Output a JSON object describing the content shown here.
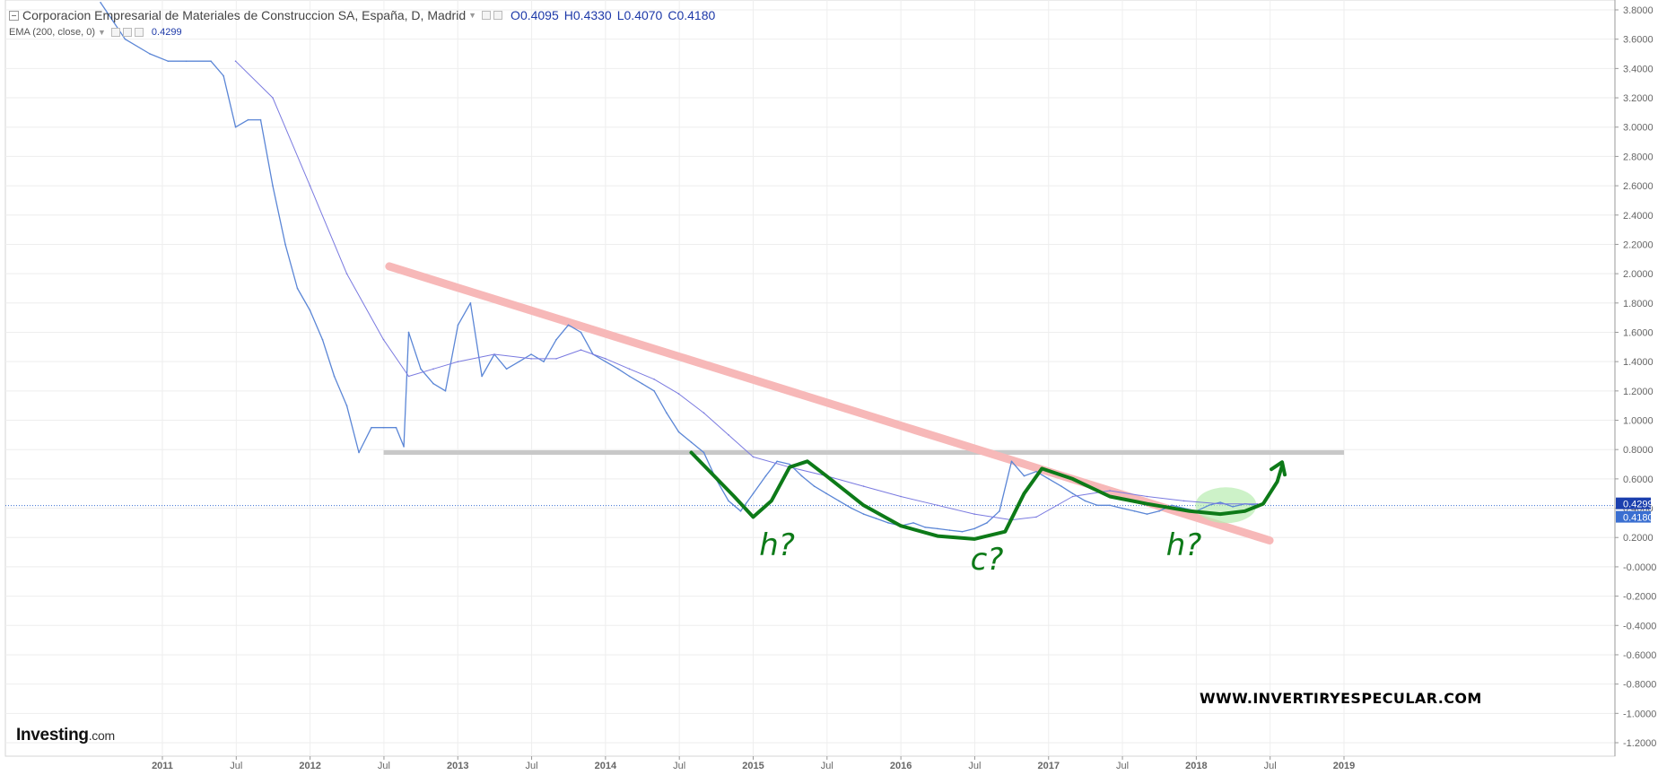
{
  "header": {
    "title": "Corporacion Empresarial de Materiales de Construccion SA, España, D, Madrid",
    "ohlc": [
      {
        "k": "O",
        "v": "0.4095"
      },
      {
        "k": "H",
        "v": "0.4330"
      },
      {
        "k": "L",
        "v": "0.4070"
      },
      {
        "k": "C",
        "v": "0.4180"
      }
    ],
    "indicator_label": "EMA (200, close, 0)",
    "indicator_value": "0.4299"
  },
  "branding": {
    "logo_text": "Investing",
    "logo_suffix": ".com",
    "watermark": "WWW.INVERTIRYESPECULAR.COM"
  },
  "colors": {
    "price": "#5b86d6",
    "ema": "#7a7ae0",
    "resistance": "#f7b8b8",
    "support": "#c8c8c8",
    "annotation": "#0d7a18",
    "highlight": "#b8ecb0",
    "axis": "#666666",
    "grid": "#eeeeee",
    "ema_badge": "#1b3fae",
    "last_badge": "#3a6fd1"
  },
  "chart_data": {
    "type": "line",
    "x_labels": [
      "2011",
      "Jul",
      "2012",
      "Jul",
      "2013",
      "Jul",
      "2014",
      "Jul",
      "2015",
      "Jul",
      "2016",
      "Jul",
      "2017",
      "Jul",
      "2018",
      "Jul",
      "2019"
    ],
    "y_ticks": [
      "3.8000",
      "3.6000",
      "3.4000",
      "3.2000",
      "3.0000",
      "2.8000",
      "2.6000",
      "2.4000",
      "2.2000",
      "2.0000",
      "1.8000",
      "1.6000",
      "1.4000",
      "1.2000",
      "1.0000",
      "0.8000",
      "0.6000",
      "0.4000",
      "0.2000",
      "-0.0000",
      "-0.2000",
      "-0.4000",
      "-0.6000",
      "-0.8000",
      "-1.0000",
      "-1.2000"
    ],
    "ylim": [
      -1.2,
      3.8
    ],
    "y_tick_values": [
      3.8,
      3.6,
      3.4,
      3.2,
      3.0,
      2.8,
      2.6,
      2.4,
      2.2,
      2.0,
      1.8,
      1.6,
      1.4,
      1.2,
      1.0,
      0.8,
      0.6,
      0.4,
      0.2,
      0.0,
      -0.2,
      -0.4,
      -0.6,
      -0.8,
      -1.0,
      -1.2
    ],
    "series": [
      {
        "name": "",
        "role": "price",
        "x": [
          "2010-08-01",
          "2010-10-01",
          "2010-12-01",
          "2011-01-15",
          "2011-03-01",
          "2011-05-01",
          "2011-06-01",
          "2011-07-01",
          "2011-08-01",
          "2011-09-01",
          "2011-10-01",
          "2011-11-01",
          "2011-12-01",
          "2012-01-01",
          "2012-02-01",
          "2012-03-01",
          "2012-04-01",
          "2012-05-01",
          "2012-06-01",
          "2012-07-01",
          "2012-08-01",
          "2012-08-20",
          "2012-09-01",
          "2012-10-01",
          "2012-11-01",
          "2012-12-01",
          "2013-01-01",
          "2013-02-01",
          "2013-03-01",
          "2013-04-01",
          "2013-05-01",
          "2013-06-01",
          "2013-07-01",
          "2013-08-01",
          "2013-09-01",
          "2013-10-01",
          "2013-11-01",
          "2013-12-01",
          "2014-01-01",
          "2014-02-01",
          "2014-03-01",
          "2014-04-01",
          "2014-05-01",
          "2014-06-01",
          "2014-07-01",
          "2014-08-01",
          "2014-09-01",
          "2014-10-01",
          "2014-11-01",
          "2014-12-01",
          "2015-01-01",
          "2015-02-01",
          "2015-03-01",
          "2015-04-01",
          "2015-05-01",
          "2015-06-01",
          "2015-07-01",
          "2015-08-01",
          "2015-09-01",
          "2015-10-01",
          "2015-11-01",
          "2015-12-01",
          "2016-01-01",
          "2016-02-01",
          "2016-03-01",
          "2016-04-01",
          "2016-05-01",
          "2016-06-01",
          "2016-07-01",
          "2016-08-01",
          "2016-09-01",
          "2016-10-01",
          "2016-11-01",
          "2016-12-01",
          "2017-01-01",
          "2017-02-01",
          "2017-03-01",
          "2017-04-01",
          "2017-05-01",
          "2017-06-01",
          "2017-07-01",
          "2017-08-01",
          "2017-09-01",
          "2017-10-01",
          "2017-11-01",
          "2017-12-01",
          "2018-01-01",
          "2018-02-01",
          "2018-03-01",
          "2018-04-01",
          "2018-05-01",
          "2018-06-01"
        ],
        "y": [
          3.85,
          3.6,
          3.5,
          3.45,
          3.45,
          3.45,
          3.35,
          3.0,
          3.05,
          3.05,
          2.6,
          2.2,
          1.9,
          1.75,
          1.55,
          1.3,
          1.1,
          0.78,
          0.95,
          0.95,
          0.95,
          0.82,
          1.6,
          1.35,
          1.25,
          1.2,
          1.65,
          1.8,
          1.3,
          1.45,
          1.35,
          1.4,
          1.45,
          1.4,
          1.55,
          1.65,
          1.6,
          1.45,
          1.4,
          1.35,
          1.3,
          1.25,
          1.2,
          1.05,
          0.92,
          0.85,
          0.78,
          0.6,
          0.45,
          0.38,
          0.5,
          0.62,
          0.72,
          0.7,
          0.62,
          0.55,
          0.5,
          0.45,
          0.4,
          0.36,
          0.33,
          0.3,
          0.28,
          0.3,
          0.27,
          0.26,
          0.25,
          0.24,
          0.26,
          0.3,
          0.38,
          0.72,
          0.62,
          0.65,
          0.6,
          0.55,
          0.5,
          0.45,
          0.42,
          0.42,
          0.4,
          0.38,
          0.36,
          0.38,
          0.42,
          0.4,
          0.38,
          0.42,
          0.44,
          0.41,
          0.43,
          0.42
        ]
      },
      {
        "name": "EMA (200, close, 0)",
        "role": "ema",
        "x": [
          "2011-07-01",
          "2011-10-01",
          "2012-01-01",
          "2012-04-01",
          "2012-07-01",
          "2012-09-01",
          "2012-11-01",
          "2013-01-01",
          "2013-04-01",
          "2013-07-01",
          "2013-09-01",
          "2013-11-01",
          "2014-01-01",
          "2014-03-01",
          "2014-05-01",
          "2014-07-01",
          "2014-09-01",
          "2014-11-01",
          "2015-01-01",
          "2015-04-01",
          "2015-07-01",
          "2015-10-01",
          "2016-01-01",
          "2016-04-01",
          "2016-07-01",
          "2016-10-01",
          "2016-12-01",
          "2017-03-01",
          "2017-06-01",
          "2017-09-01",
          "2017-12-01",
          "2018-03-01",
          "2018-06-01"
        ],
        "y": [
          3.45,
          3.2,
          2.6,
          2.0,
          1.55,
          1.3,
          1.35,
          1.4,
          1.45,
          1.42,
          1.42,
          1.48,
          1.42,
          1.35,
          1.28,
          1.18,
          1.05,
          0.9,
          0.75,
          0.68,
          0.62,
          0.55,
          0.48,
          0.42,
          0.36,
          0.32,
          0.34,
          0.48,
          0.52,
          0.48,
          0.45,
          0.43,
          0.43
        ]
      }
    ],
    "last_price": 0.418,
    "ema_last": 0.4299,
    "last_price_label": "0.4180",
    "ema_label": "0.4299",
    "annotations": {
      "resistance_line": {
        "x": [
          "2012-07-15",
          "2018-07-01"
        ],
        "y": [
          2.05,
          0.18
        ]
      },
      "support_line": {
        "x": [
          "2012-07-01",
          "2019-01-01"
        ],
        "y": [
          0.78,
          0.78
        ]
      },
      "texts": [
        {
          "text": "h?",
          "x": "2015-03-01",
          "y": 0.08
        },
        {
          "text": "c?",
          "x": "2016-08-01",
          "y": -0.02
        },
        {
          "text": "h?",
          "x": "2017-12-01",
          "y": 0.08
        }
      ]
    },
    "grid": true
  }
}
